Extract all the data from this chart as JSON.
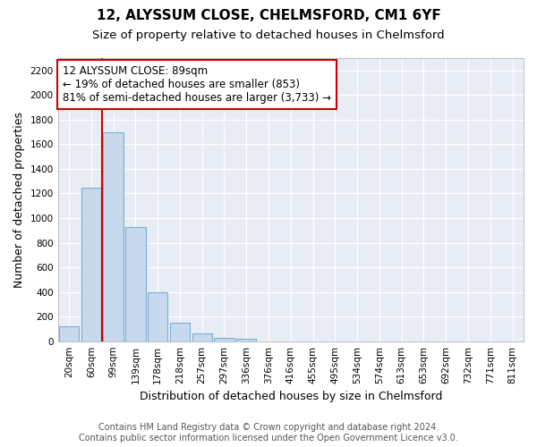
{
  "title": "12, ALYSSUM CLOSE, CHELMSFORD, CM1 6YF",
  "subtitle": "Size of property relative to detached houses in Chelmsford",
  "xlabel": "Distribution of detached houses by size in Chelmsford",
  "ylabel": "Number of detached properties",
  "categories": [
    "20sqm",
    "60sqm",
    "99sqm",
    "139sqm",
    "178sqm",
    "218sqm",
    "257sqm",
    "297sqm",
    "336sqm",
    "376sqm",
    "416sqm",
    "455sqm",
    "495sqm",
    "534sqm",
    "574sqm",
    "613sqm",
    "653sqm",
    "692sqm",
    "732sqm",
    "771sqm",
    "811sqm"
  ],
  "values": [
    120,
    1250,
    1700,
    925,
    400,
    150,
    65,
    30,
    20,
    0,
    0,
    0,
    0,
    0,
    0,
    0,
    0,
    0,
    0,
    0,
    0
  ],
  "bar_color": "#c8d9ee",
  "bar_edge_color": "#7bafd4",
  "vline_x_idx": 2,
  "vline_color": "#cc0000",
  "ylim": [
    0,
    2300
  ],
  "yticks": [
    0,
    200,
    400,
    600,
    800,
    1000,
    1200,
    1400,
    1600,
    1800,
    2000,
    2200
  ],
  "annotation_text": "12 ALYSSUM CLOSE: 89sqm\n← 19% of detached houses are smaller (853)\n81% of semi-detached houses are larger (3,733) →",
  "annotation_box_facecolor": "#ffffff",
  "annotation_box_edgecolor": "#cc0000",
  "footer1": "Contains HM Land Registry data © Crown copyright and database right 2024.",
  "footer2": "Contains public sector information licensed under the Open Government Licence v3.0.",
  "bg_color": "#ffffff",
  "plot_bg_color": "#e8edf5",
  "grid_color": "#ffffff",
  "title_fontsize": 11,
  "subtitle_fontsize": 9.5,
  "axis_label_fontsize": 9,
  "tick_fontsize": 7.5,
  "annotation_fontsize": 8.5,
  "footer_fontsize": 7
}
